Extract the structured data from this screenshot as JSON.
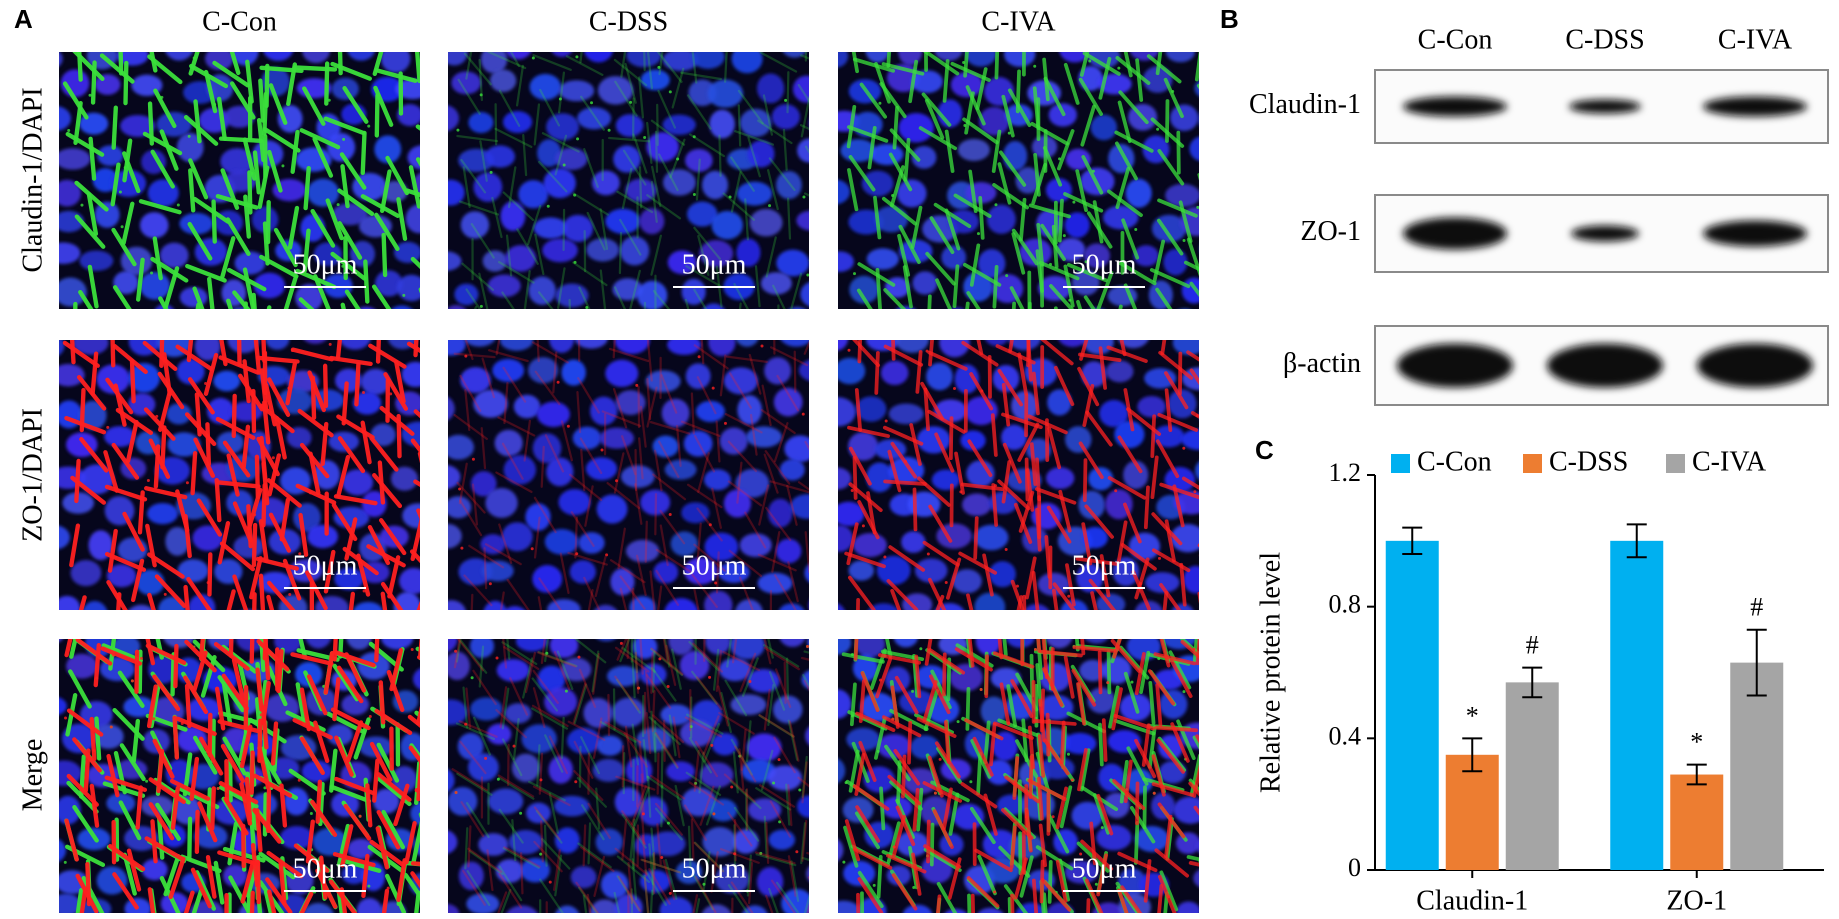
{
  "panels": {
    "a": "A",
    "b": "B",
    "c": "C"
  },
  "micrographs": {
    "columns": [
      "C-Con",
      "C-DSS",
      "C-IVA"
    ],
    "rows": [
      "Claudin-1/DAPI",
      "ZO-1/DAPI",
      "Merge"
    ],
    "scale_bar": "50μm"
  },
  "western_blot": {
    "columns": [
      "C-Con",
      "C-DSS",
      "C-IVA"
    ],
    "rows": [
      "Claudin-1",
      "ZO-1",
      "β-actin"
    ]
  },
  "chart_data": {
    "type": "bar",
    "y_label": "Relative protein level",
    "categories": [
      "Claudin-1",
      "ZO-1"
    ],
    "series": [
      {
        "name": "C-Con",
        "color": "#00b0f0",
        "values": [
          1.0,
          1.0
        ],
        "errors": [
          0.04,
          0.05
        ]
      },
      {
        "name": "C-DSS",
        "color": "#ed7d31",
        "values": [
          0.35,
          0.29
        ],
        "errors": [
          0.05,
          0.03
        ],
        "annotations": [
          "*",
          "*"
        ]
      },
      {
        "name": "C-IVA",
        "color": "#a5a5a5",
        "values": [
          0.57,
          0.63
        ],
        "errors": [
          0.045,
          0.1
        ],
        "annotations": [
          "#",
          "#"
        ]
      }
    ],
    "ylim": [
      0,
      1.2
    ],
    "yticks": [
      0,
      0.4,
      0.8,
      1.2
    ],
    "grid": false,
    "legend": "top"
  }
}
